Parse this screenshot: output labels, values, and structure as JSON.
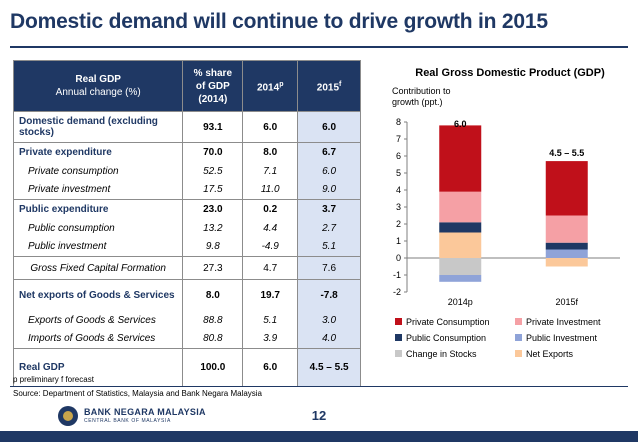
{
  "slide": {
    "title": "Domestic demand will continue to drive growth in 2015",
    "page_number": "12",
    "footnote": "p preliminary   f forecast",
    "source": "Source: Department of Statistics, Malaysia and Bank Negara Malaysia",
    "bank_name": "BANK NEGARA MALAYSIA",
    "bank_subtitle": "CENTRAL BANK OF MALAYSIA"
  },
  "table": {
    "header": {
      "label_line1": "Real GDP",
      "label_line2": "Annual change (%)",
      "col_share": "% share of GDP (2014)",
      "col_2014": "2014",
      "col_2014_sup": "p",
      "col_2015": "2015",
      "col_2015_sup": "f"
    },
    "rows": [
      {
        "label": "Domestic demand (excluding stocks)",
        "share": "93.1",
        "y2014": "6.0",
        "y2015": "6.0"
      },
      {
        "label": "Private expenditure",
        "share": "70.0",
        "y2014": "8.0",
        "y2015": "6.7"
      },
      {
        "label": "Private consumption",
        "share": "52.5",
        "y2014": "7.1",
        "y2015": "6.0"
      },
      {
        "label": "Private investment",
        "share": "17.5",
        "y2014": "11.0",
        "y2015": "9.0"
      },
      {
        "label": "Public expenditure",
        "share": "23.0",
        "y2014": "0.2",
        "y2015": "3.7"
      },
      {
        "label": "Public consumption",
        "share": "13.2",
        "y2014": "4.4",
        "y2015": "2.7"
      },
      {
        "label": "Public investment",
        "share": "9.8",
        "y2014": "-4.9",
        "y2015": "5.1"
      },
      {
        "label": "Gross Fixed Capital Formation",
        "share": "27.3",
        "y2014": "4.7",
        "y2015": "7.6"
      },
      {
        "label": "Net exports of Goods & Services",
        "share": "8.0",
        "y2014": "19.7",
        "y2015": "-7.8"
      },
      {
        "label": "Exports of Goods & Services",
        "share": "88.8",
        "y2014": "5.1",
        "y2015": "3.0"
      },
      {
        "label": "Imports of Goods & Services",
        "share": "80.8",
        "y2014": "3.9",
        "y2015": "4.0"
      },
      {
        "label": "Real GDP",
        "share": "100.0",
        "y2014": "6.0",
        "y2015": "4.5 – 5.5"
      }
    ]
  },
  "chart_data": {
    "type": "bar",
    "stacked": true,
    "title": "Real Gross Domestic Product (GDP)",
    "ylabel": "Contribution to growth (ppt.)",
    "categories": [
      "2014p",
      "2015f"
    ],
    "ylim": [
      -2,
      8
    ],
    "yticks": [
      -2,
      -1,
      0,
      1,
      2,
      3,
      4,
      5,
      6,
      7,
      8
    ],
    "total_labels": [
      "6.0",
      "4.5 – 5.5"
    ],
    "totals": [
      7.4,
      5.7
    ],
    "series": [
      {
        "name": "Private Consumption",
        "color": "#c0101a",
        "values": [
          3.9,
          3.2
        ]
      },
      {
        "name": "Private Investment",
        "color": "#f5a0a5",
        "values": [
          1.8,
          1.6
        ]
      },
      {
        "name": "Public Consumption",
        "color": "#1f3864",
        "values": [
          0.6,
          0.4
        ]
      },
      {
        "name": "Public Investment",
        "color": "#8fa3d8",
        "values": [
          0.0,
          0.5
        ]
      },
      {
        "name": "Change in Stocks",
        "color": "#c8c8c8",
        "values": [
          -1.0,
          0.0
        ]
      },
      {
        "name": "Net Exports",
        "color": "#fbc89a",
        "values": [
          1.5,
          -0.5
        ]
      }
    ],
    "stack_order": [
      {
        "series": 4,
        "sign": "neg"
      },
      {
        "series": 5,
        "sign": "pos"
      },
      {
        "series": 3,
        "sign": "pos"
      },
      {
        "series": 2,
        "sign": "pos"
      },
      {
        "series": 1,
        "sign": "pos"
      },
      {
        "series": 0,
        "sign": "pos"
      }
    ],
    "extra_negative": [
      {
        "category": 0,
        "color": "#8fa3d8",
        "from": -1.0,
        "to": -1.4
      }
    ],
    "legend_position": "bottom",
    "grid": false
  }
}
